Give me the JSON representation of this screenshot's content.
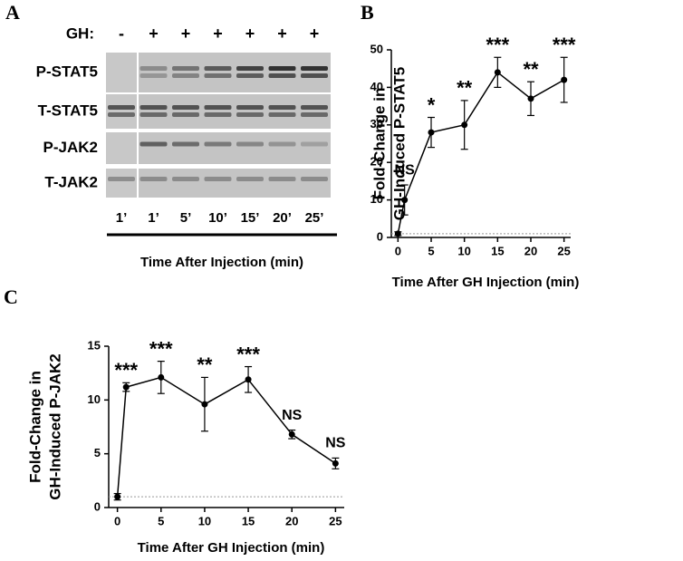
{
  "blot": {
    "panel": "A",
    "treatment_label": "GH:",
    "treatment": [
      "-",
      "+",
      "+",
      "+",
      "+",
      "+",
      "+"
    ],
    "rows": [
      "P-STAT5",
      "T-STAT5",
      "P-JAK2",
      "T-JAK2"
    ],
    "lanes": [
      "1’",
      "1’",
      "5’",
      "10’",
      "15’",
      "20’",
      "25’"
    ],
    "xlabel": "Time After Injection (min)"
  },
  "chart_data": [
    {
      "type": "line",
      "panel": "B",
      "x": [
        0,
        1,
        5,
        10,
        15,
        20,
        25
      ],
      "series": [
        {
          "color": "#000000",
          "values": [
            1,
            10,
            28,
            30,
            44,
            37,
            42
          ],
          "errors": [
            0.5,
            4,
            4,
            6.5,
            4,
            4.5,
            6
          ]
        }
      ],
      "annotations": [
        null,
        "NS",
        "*",
        "**",
        "***",
        "**",
        "***"
      ],
      "xlabel": "Time After GH Injection (min)",
      "ylabel": [
        "Fold-Change in",
        "GH-Induced P-STAT5"
      ],
      "xlim": [
        -1,
        26
      ],
      "ylim": [
        0,
        50
      ],
      "xticks": [
        0,
        5,
        10,
        15,
        20,
        25
      ],
      "yticks": [
        0,
        10,
        20,
        30,
        40,
        50
      ],
      "reference_line": 1
    },
    {
      "type": "line",
      "panel": "C",
      "x": [
        0,
        1,
        5,
        10,
        15,
        20,
        25
      ],
      "series": [
        {
          "color": "#000000",
          "values": [
            1,
            11.2,
            12.1,
            9.6,
            11.9,
            6.8,
            4.1
          ],
          "errors": [
            0.3,
            0.4,
            1.5,
            2.5,
            1.2,
            0.4,
            0.5
          ]
        }
      ],
      "annotations": [
        null,
        "***",
        "***",
        "**",
        "***",
        "NS",
        "NS"
      ],
      "xlabel": "Time After GH Injection (min)",
      "ylabel": [
        "Fold-Change in",
        "GH-Induced P-JAK2"
      ],
      "xlim": [
        -1,
        26
      ],
      "ylim": [
        0,
        15
      ],
      "xticks": [
        0,
        5,
        10,
        15,
        20,
        25
      ],
      "yticks": [
        0,
        5,
        10,
        15
      ],
      "reference_line": 1
    }
  ]
}
